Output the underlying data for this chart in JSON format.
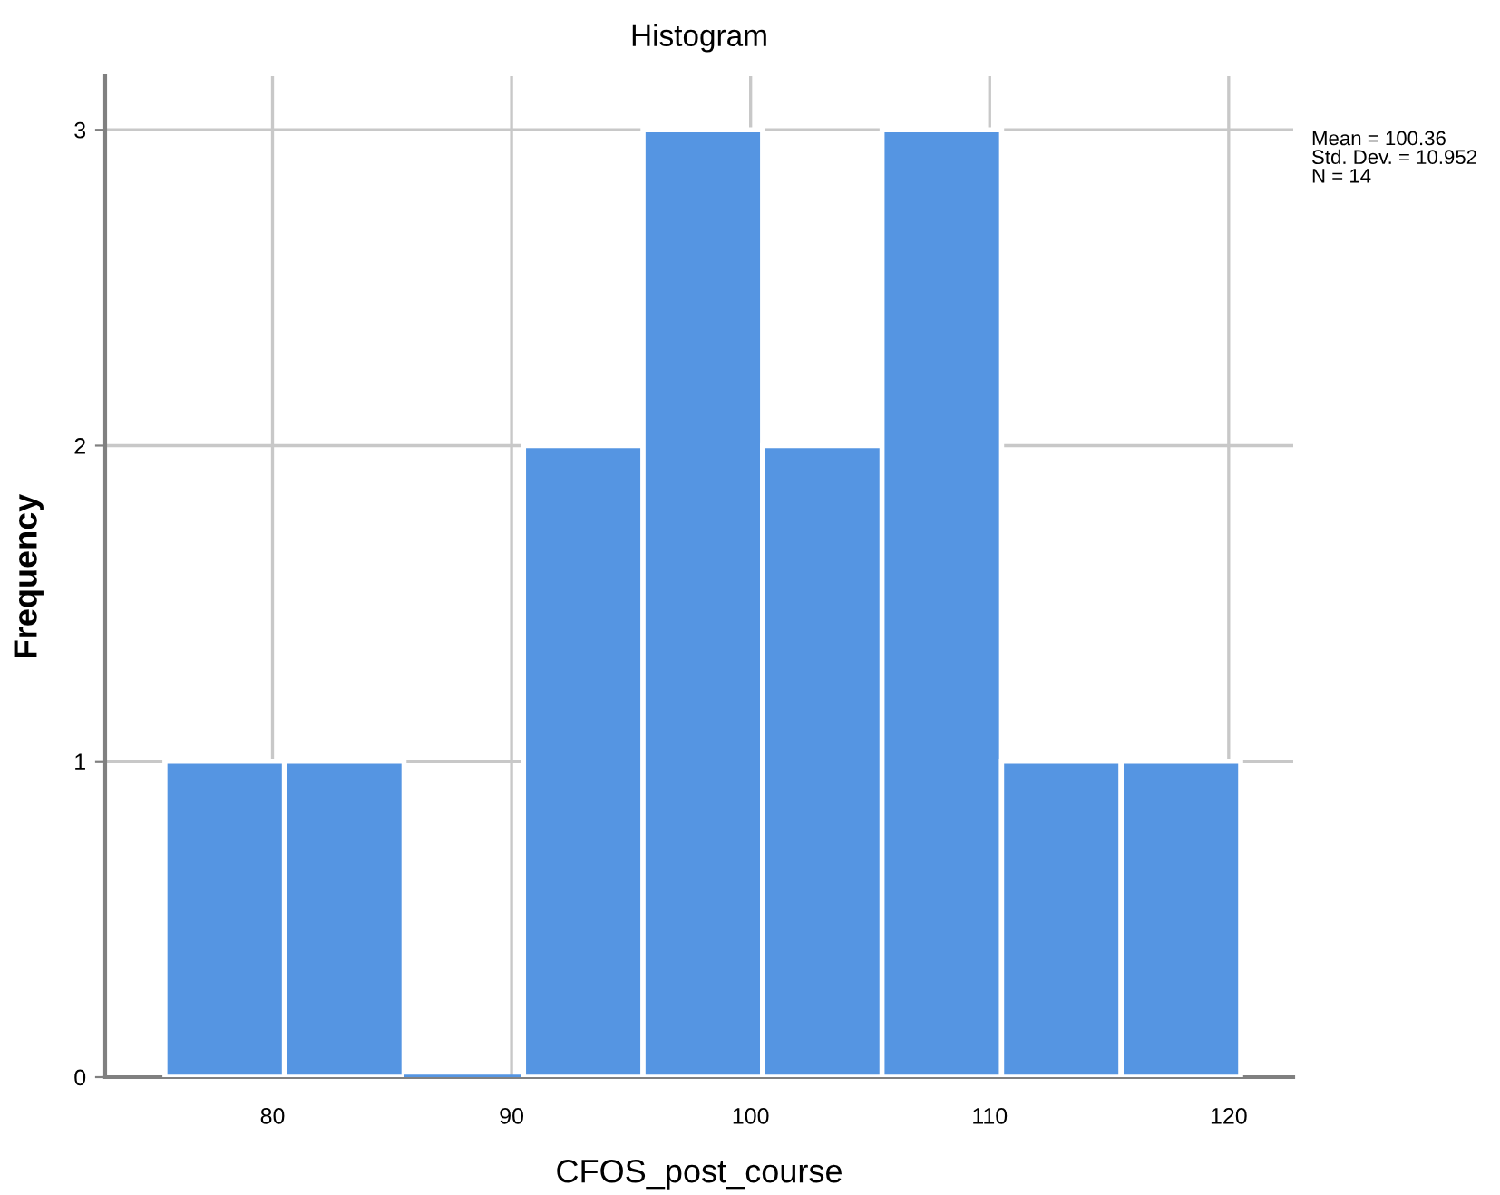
{
  "chart_data": {
    "type": "histogram",
    "title": "Histogram",
    "xlabel": "CFOS_post_course",
    "ylabel": "Frequency",
    "bins": [
      75.5,
      80.5,
      85.5,
      90.5,
      95.5,
      100.5,
      105.5,
      110.5,
      115.5,
      120.5
    ],
    "values": [
      1,
      1,
      0,
      2,
      3,
      2,
      3,
      1,
      1
    ],
    "color": "#5595e2",
    "xlim": [
      73,
      122.7
    ],
    "xticks": [
      80,
      90,
      100,
      110,
      120
    ],
    "ylim": [
      0,
      3.17
    ],
    "yticks": [
      0,
      1,
      2,
      3
    ],
    "grid": true,
    "annotations": [
      "Mean = 100.36",
      "Std. Dev. = 10.952",
      "N = 14"
    ]
  }
}
